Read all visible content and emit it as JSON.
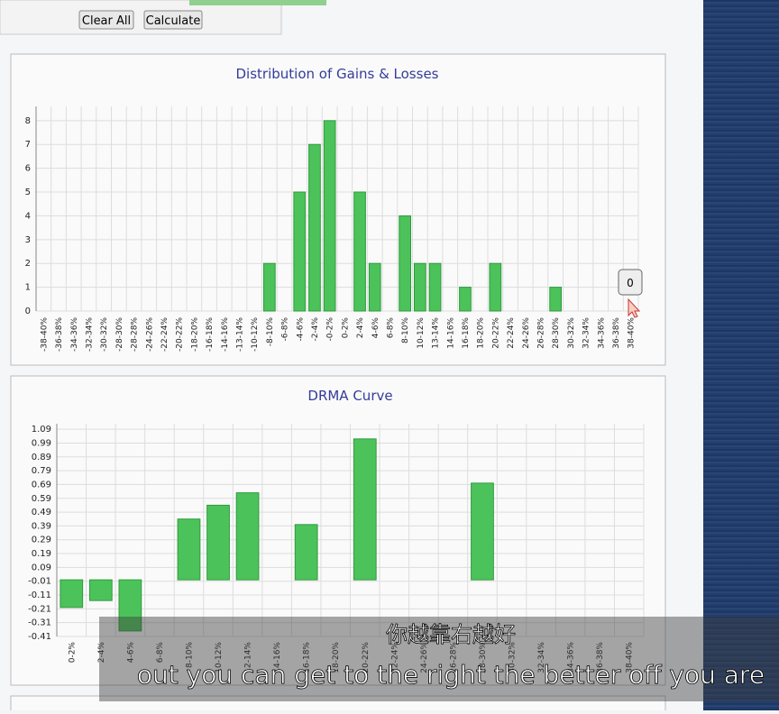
{
  "buttons": [
    "Clear All",
    "Calculate"
  ],
  "tooltip": "0",
  "subtitles": [
    "你越靠右越好",
    "out you can get to the right the better off you are"
  ],
  "chart_data": [
    {
      "type": "bar",
      "title": "Distribution of Gains & Losses",
      "categories": [
        "-38-40%",
        "-36-38%",
        "-34-36%",
        "-32-34%",
        "-30-32%",
        "-28-30%",
        "-28-28%",
        "-24-26%",
        "-22-24%",
        "-20-22%",
        "-18-20%",
        "-16-18%",
        "-14-16%",
        "-13-14%",
        "-10-12%",
        "-8-10%",
        "-6-8%",
        "-4-6%",
        "-2-4%",
        "-0-2%",
        "0-2%",
        "2-4%",
        "4-6%",
        "6-8%",
        "8-10%",
        "10-12%",
        "13-14%",
        "14-16%",
        "16-18%",
        "18-20%",
        "20-22%",
        "22-24%",
        "24-26%",
        "26-28%",
        "28-30%",
        "30-32%",
        "32-34%",
        "34-36%",
        "36-38%",
        "38-40%"
      ],
      "values": [
        0,
        0,
        0,
        0,
        0,
        0,
        0,
        0,
        0,
        0,
        0,
        0,
        0,
        0,
        0,
        2,
        0,
        5,
        7,
        8,
        0,
        5,
        2,
        0,
        4,
        2,
        2,
        0,
        1,
        0,
        2,
        0,
        0,
        0,
        1,
        0,
        0,
        0,
        0,
        0
      ],
      "color": "#4cc35a",
      "ylim": [
        0,
        8.6
      ],
      "yticks": [
        0,
        1,
        2,
        3,
        4,
        5,
        6,
        7,
        8
      ],
      "grid": true
    },
    {
      "type": "bar",
      "title": "DRMA Curve",
      "categories": [
        "0-2%",
        "2-4%",
        "4-6%",
        "6-8%",
        "8-10%",
        "10-12%",
        "12-14%",
        "14-16%",
        "16-18%",
        "18-20%",
        "20-22%",
        "22-24%",
        "24-26%",
        "26-28%",
        "28-30%",
        "30-32%",
        "32-34%",
        "34-36%",
        "36-38%",
        "38-40%"
      ],
      "values": [
        -0.2,
        -0.15,
        -0.37,
        null,
        0.44,
        0.54,
        0.63,
        null,
        0.4,
        null,
        1.02,
        null,
        null,
        null,
        0.7,
        null,
        null,
        null,
        null,
        null
      ],
      "color": "#4cc35a",
      "ylim": [
        -0.41,
        1.13
      ],
      "yticks": [
        1.09,
        0.99,
        0.89,
        0.79,
        0.69,
        0.59,
        0.49,
        0.39,
        0.29,
        0.19,
        0.09,
        -0.01,
        -0.11,
        -0.21,
        -0.31,
        -0.41
      ],
      "grid": true
    }
  ]
}
